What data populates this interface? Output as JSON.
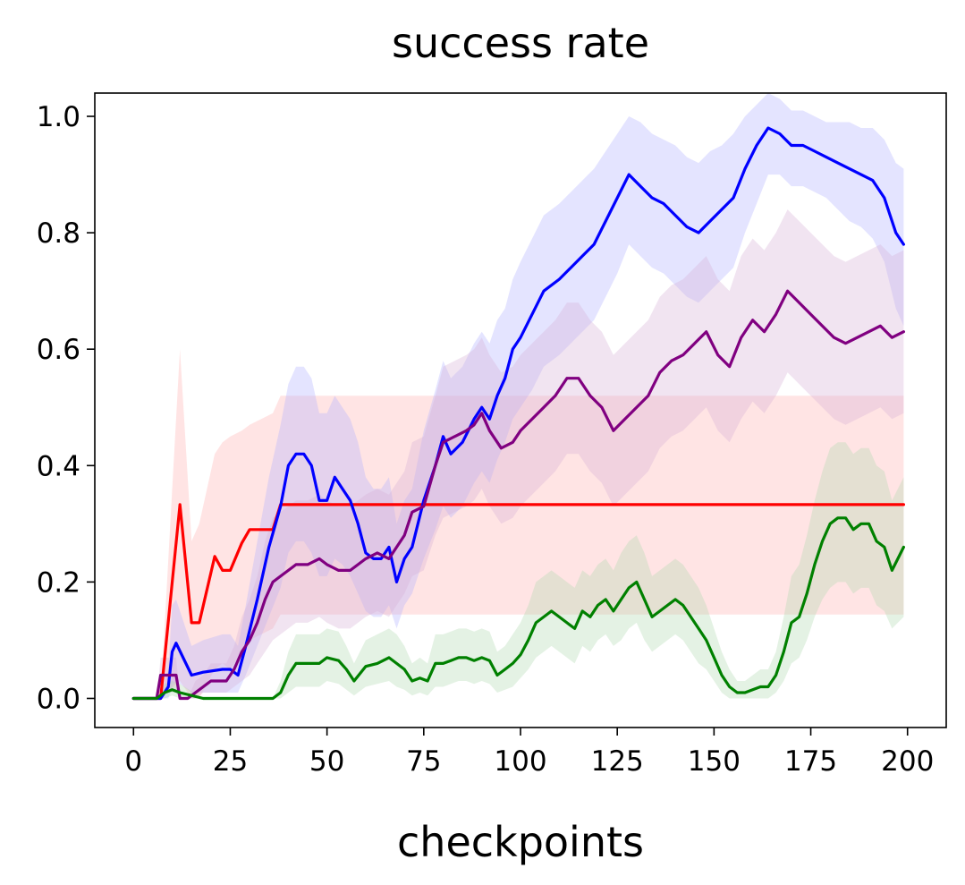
{
  "chart_data": {
    "type": "line",
    "title": "success rate",
    "xlabel": "checkpoints",
    "ylabel": "",
    "xlim": [
      -10,
      210
    ],
    "ylim": [
      -0.05,
      1.04
    ],
    "xticks": [
      0,
      25,
      50,
      75,
      100,
      125,
      150,
      175,
      200
    ],
    "xtick_labels": [
      "0",
      "25",
      "50",
      "75",
      "100",
      "125",
      "150",
      "175",
      "200"
    ],
    "yticks": [
      0.0,
      0.2,
      0.4,
      0.6,
      0.8,
      1.0
    ],
    "ytick_labels": [
      "0.0",
      "0.2",
      "0.4",
      "0.6",
      "0.8",
      "1.0"
    ],
    "grid": false,
    "series": [
      {
        "color": "#ff0000",
        "band_color": "#ffb3b3",
        "x": [
          0,
          7,
          12,
          15,
          17,
          21,
          23,
          25,
          28,
          30,
          33,
          36,
          38,
          199
        ],
        "values": [
          0,
          0,
          0.333,
          0.13,
          0.13,
          0.244,
          0.22,
          0.22,
          0.267,
          0.29,
          0.29,
          0.29,
          0.333,
          0.333
        ],
        "lower": [
          0,
          0,
          0.03,
          0,
          0,
          0.05,
          0.06,
          0.05,
          0.08,
          0.1,
          0.11,
          0.12,
          0.144,
          0.144
        ],
        "upper": [
          0,
          0,
          0.6,
          0.27,
          0.3,
          0.42,
          0.44,
          0.45,
          0.46,
          0.47,
          0.48,
          0.49,
          0.52,
          0.52
        ]
      },
      {
        "color": "#0000ff",
        "band_color": "#b3b3ff",
        "x": [
          0,
          7,
          9,
          10,
          11,
          15,
          18,
          23,
          25,
          27,
          29,
          32,
          35,
          38,
          40,
          42,
          44,
          46,
          48,
          50,
          52,
          54,
          56,
          58,
          60,
          62,
          64,
          66,
          68,
          70,
          72,
          75,
          78,
          80,
          82,
          85,
          88,
          90,
          92,
          94,
          96,
          98,
          100,
          103,
          106,
          110,
          113,
          116,
          119,
          122,
          125,
          128,
          131,
          134,
          137,
          140,
          143,
          146,
          149,
          152,
          155,
          158,
          161,
          164,
          167,
          170,
          173,
          176,
          179,
          182,
          185,
          188,
          191,
          194,
          197,
          199
        ],
        "values": [
          0,
          0,
          0.02,
          0.08,
          0.095,
          0.04,
          0.045,
          0.05,
          0.05,
          0.04,
          0.09,
          0.17,
          0.26,
          0.33,
          0.4,
          0.42,
          0.42,
          0.4,
          0.34,
          0.34,
          0.38,
          0.36,
          0.34,
          0.3,
          0.25,
          0.24,
          0.24,
          0.26,
          0.2,
          0.24,
          0.26,
          0.34,
          0.4,
          0.45,
          0.42,
          0.44,
          0.48,
          0.5,
          0.48,
          0.52,
          0.55,
          0.6,
          0.62,
          0.66,
          0.7,
          0.72,
          0.74,
          0.76,
          0.78,
          0.82,
          0.86,
          0.9,
          0.88,
          0.86,
          0.85,
          0.83,
          0.81,
          0.8,
          0.82,
          0.84,
          0.86,
          0.91,
          0.95,
          0.98,
          0.97,
          0.95,
          0.95,
          0.94,
          0.93,
          0.92,
          0.91,
          0.9,
          0.89,
          0.86,
          0.8,
          0.78
        ],
        "lower": [
          0,
          0,
          0,
          0.02,
          0.03,
          0.01,
          0.01,
          0.01,
          0.01,
          0.01,
          0.04,
          0.09,
          0.14,
          0.19,
          0.25,
          0.27,
          0.27,
          0.25,
          0.21,
          0.21,
          0.24,
          0.23,
          0.21,
          0.18,
          0.15,
          0.14,
          0.14,
          0.16,
          0.12,
          0.16,
          0.18,
          0.24,
          0.29,
          0.33,
          0.31,
          0.33,
          0.37,
          0.39,
          0.37,
          0.41,
          0.44,
          0.48,
          0.5,
          0.53,
          0.57,
          0.59,
          0.61,
          0.63,
          0.65,
          0.69,
          0.73,
          0.78,
          0.76,
          0.74,
          0.73,
          0.71,
          0.69,
          0.68,
          0.7,
          0.72,
          0.74,
          0.8,
          0.85,
          0.9,
          0.9,
          0.88,
          0.88,
          0.87,
          0.86,
          0.84,
          0.82,
          0.81,
          0.79,
          0.75,
          0.67,
          0.64
        ],
        "upper": [
          0,
          0,
          0.05,
          0.16,
          0.17,
          0.09,
          0.1,
          0.11,
          0.11,
          0.09,
          0.16,
          0.27,
          0.38,
          0.47,
          0.54,
          0.57,
          0.57,
          0.55,
          0.49,
          0.49,
          0.52,
          0.5,
          0.48,
          0.44,
          0.38,
          0.36,
          0.36,
          0.38,
          0.3,
          0.34,
          0.36,
          0.46,
          0.53,
          0.58,
          0.55,
          0.57,
          0.61,
          0.63,
          0.61,
          0.65,
          0.67,
          0.72,
          0.75,
          0.79,
          0.83,
          0.85,
          0.87,
          0.89,
          0.91,
          0.94,
          0.97,
          1.0,
          0.99,
          0.97,
          0.96,
          0.95,
          0.93,
          0.92,
          0.94,
          0.95,
          0.97,
          1.0,
          1.02,
          1.04,
          1.03,
          1.01,
          1.01,
          1.0,
          0.99,
          0.99,
          0.99,
          0.98,
          0.98,
          0.96,
          0.92,
          0.91
        ]
      },
      {
        "color": "#800080",
        "band_color": "#d8b3d8",
        "x": [
          0,
          6,
          7,
          11,
          12,
          14,
          16,
          18,
          20,
          22,
          24,
          26,
          28,
          30,
          32,
          34,
          36,
          38,
          40,
          42,
          45,
          48,
          50,
          53,
          56,
          58,
          60,
          63,
          66,
          68,
          70,
          72,
          75,
          78,
          80,
          83,
          86,
          88,
          90,
          92,
          95,
          98,
          100,
          103,
          106,
          109,
          112,
          115,
          118,
          121,
          124,
          127,
          130,
          133,
          136,
          139,
          142,
          145,
          148,
          151,
          154,
          157,
          160,
          163,
          166,
          169,
          172,
          175,
          178,
          181,
          184,
          187,
          190,
          193,
          196,
          199
        ],
        "values": [
          0,
          0,
          0.04,
          0.04,
          0,
          0,
          0.01,
          0.02,
          0.03,
          0.03,
          0.03,
          0.05,
          0.08,
          0.1,
          0.13,
          0.17,
          0.2,
          0.21,
          0.22,
          0.23,
          0.23,
          0.24,
          0.23,
          0.22,
          0.22,
          0.23,
          0.24,
          0.25,
          0.24,
          0.26,
          0.28,
          0.32,
          0.33,
          0.4,
          0.44,
          0.45,
          0.46,
          0.47,
          0.49,
          0.46,
          0.43,
          0.44,
          0.46,
          0.48,
          0.5,
          0.52,
          0.55,
          0.55,
          0.52,
          0.5,
          0.46,
          0.48,
          0.5,
          0.52,
          0.56,
          0.58,
          0.59,
          0.61,
          0.63,
          0.59,
          0.57,
          0.62,
          0.65,
          0.63,
          0.66,
          0.7,
          0.68,
          0.66,
          0.64,
          0.62,
          0.61,
          0.62,
          0.63,
          0.64,
          0.62,
          0.63
        ],
        "lower": [
          0,
          0,
          0.01,
          0.01,
          0,
          0,
          0,
          0.01,
          0.01,
          0.01,
          0.01,
          0.02,
          0.03,
          0.04,
          0.06,
          0.08,
          0.1,
          0.11,
          0.12,
          0.13,
          0.13,
          0.14,
          0.13,
          0.12,
          0.12,
          0.13,
          0.14,
          0.15,
          0.14,
          0.16,
          0.18,
          0.21,
          0.22,
          0.28,
          0.31,
          0.32,
          0.33,
          0.34,
          0.36,
          0.33,
          0.3,
          0.31,
          0.33,
          0.35,
          0.37,
          0.39,
          0.42,
          0.42,
          0.39,
          0.37,
          0.33,
          0.35,
          0.37,
          0.39,
          0.43,
          0.45,
          0.46,
          0.48,
          0.5,
          0.46,
          0.44,
          0.48,
          0.51,
          0.49,
          0.52,
          0.56,
          0.54,
          0.52,
          0.5,
          0.48,
          0.47,
          0.48,
          0.49,
          0.5,
          0.48,
          0.49
        ],
        "upper": [
          0,
          0,
          0.07,
          0.07,
          0,
          0,
          0.03,
          0.04,
          0.06,
          0.06,
          0.06,
          0.09,
          0.14,
          0.17,
          0.21,
          0.27,
          0.31,
          0.32,
          0.33,
          0.34,
          0.34,
          0.35,
          0.34,
          0.33,
          0.33,
          0.34,
          0.35,
          0.36,
          0.35,
          0.37,
          0.39,
          0.44,
          0.45,
          0.52,
          0.57,
          0.58,
          0.59,
          0.6,
          0.62,
          0.59,
          0.56,
          0.57,
          0.59,
          0.61,
          0.63,
          0.65,
          0.68,
          0.68,
          0.65,
          0.63,
          0.59,
          0.61,
          0.63,
          0.65,
          0.69,
          0.71,
          0.72,
          0.74,
          0.76,
          0.72,
          0.7,
          0.76,
          0.79,
          0.77,
          0.8,
          0.84,
          0.82,
          0.8,
          0.78,
          0.76,
          0.75,
          0.76,
          0.77,
          0.78,
          0.76,
          0.77
        ]
      },
      {
        "color": "#008000",
        "band_color": "#b3d9b3",
        "x": [
          0,
          6,
          8,
          10,
          12,
          18,
          22,
          25,
          30,
          36,
          38,
          40,
          42,
          45,
          48,
          50,
          53,
          55,
          57,
          60,
          63,
          66,
          68,
          70,
          72,
          74,
          76,
          78,
          80,
          82,
          84,
          86,
          88,
          90,
          92,
          94,
          96,
          98,
          100,
          102,
          104,
          106,
          108,
          110,
          112,
          114,
          116,
          118,
          120,
          122,
          124,
          126,
          128,
          130,
          132,
          134,
          136,
          138,
          140,
          142,
          144,
          146,
          148,
          150,
          152,
          154,
          156,
          158,
          160,
          162,
          164,
          166,
          168,
          170,
          172,
          174,
          176,
          178,
          180,
          182,
          184,
          186,
          188,
          190,
          192,
          194,
          196,
          199
        ],
        "values": [
          0,
          0,
          0.01,
          0.015,
          0.01,
          0,
          0,
          0,
          0,
          0,
          0.01,
          0.04,
          0.06,
          0.06,
          0.06,
          0.07,
          0.065,
          0.05,
          0.03,
          0.055,
          0.06,
          0.07,
          0.06,
          0.05,
          0.03,
          0.035,
          0.03,
          0.06,
          0.06,
          0.065,
          0.07,
          0.07,
          0.065,
          0.07,
          0.065,
          0.04,
          0.05,
          0.06,
          0.075,
          0.1,
          0.13,
          0.14,
          0.15,
          0.14,
          0.13,
          0.12,
          0.15,
          0.14,
          0.16,
          0.17,
          0.15,
          0.17,
          0.19,
          0.2,
          0.17,
          0.14,
          0.15,
          0.16,
          0.17,
          0.16,
          0.14,
          0.12,
          0.1,
          0.07,
          0.04,
          0.02,
          0.01,
          0.01,
          0.015,
          0.02,
          0.02,
          0.04,
          0.08,
          0.13,
          0.14,
          0.18,
          0.23,
          0.27,
          0.3,
          0.31,
          0.31,
          0.29,
          0.3,
          0.3,
          0.27,
          0.26,
          0.22,
          0.26
        ],
        "lower": [
          0,
          0,
          0,
          0.005,
          0,
          0,
          0,
          0,
          0,
          0,
          0,
          0.01,
          0.02,
          0.02,
          0.02,
          0.03,
          0.025,
          0.015,
          0.005,
          0.02,
          0.025,
          0.03,
          0.02,
          0.015,
          0.005,
          0.01,
          0.005,
          0.02,
          0.02,
          0.025,
          0.03,
          0.03,
          0.025,
          0.03,
          0.025,
          0.01,
          0.015,
          0.02,
          0.035,
          0.05,
          0.07,
          0.08,
          0.09,
          0.08,
          0.07,
          0.06,
          0.09,
          0.08,
          0.1,
          0.11,
          0.09,
          0.1,
          0.12,
          0.13,
          0.1,
          0.08,
          0.09,
          0.1,
          0.11,
          0.1,
          0.08,
          0.06,
          0.05,
          0.03,
          0.01,
          0,
          0,
          0,
          0,
          0,
          0,
          0.01,
          0.03,
          0.06,
          0.07,
          0.1,
          0.14,
          0.17,
          0.19,
          0.2,
          0.2,
          0.18,
          0.19,
          0.19,
          0.16,
          0.15,
          0.12,
          0.14
        ],
        "upper": [
          0,
          0,
          0.025,
          0.03,
          0.025,
          0,
          0,
          0,
          0,
          0,
          0.03,
          0.08,
          0.11,
          0.11,
          0.11,
          0.12,
          0.115,
          0.09,
          0.06,
          0.1,
          0.11,
          0.12,
          0.11,
          0.09,
          0.06,
          0.07,
          0.06,
          0.11,
          0.11,
          0.115,
          0.12,
          0.12,
          0.115,
          0.12,
          0.115,
          0.08,
          0.09,
          0.11,
          0.13,
          0.16,
          0.2,
          0.21,
          0.22,
          0.21,
          0.2,
          0.19,
          0.22,
          0.21,
          0.23,
          0.24,
          0.22,
          0.25,
          0.27,
          0.28,
          0.25,
          0.21,
          0.22,
          0.23,
          0.24,
          0.23,
          0.21,
          0.19,
          0.16,
          0.12,
          0.08,
          0.05,
          0.03,
          0.03,
          0.04,
          0.05,
          0.05,
          0.08,
          0.14,
          0.21,
          0.23,
          0.28,
          0.34,
          0.39,
          0.43,
          0.44,
          0.44,
          0.42,
          0.43,
          0.43,
          0.4,
          0.39,
          0.34,
          0.38
        ]
      }
    ]
  }
}
